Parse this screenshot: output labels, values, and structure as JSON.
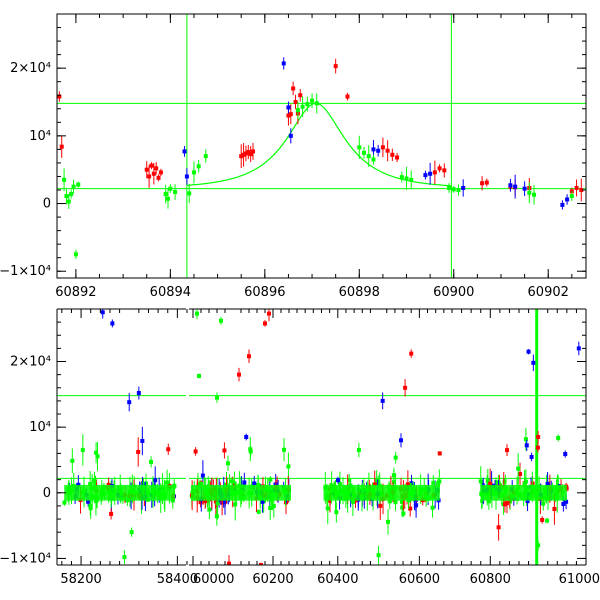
{
  "chart_data": [
    {
      "type": "scatter",
      "panel": "top",
      "xlim": [
        60891.6,
        60902.8
      ],
      "ylim": [
        -11000,
        28000
      ],
      "x_ticks": [
        "60892",
        "60894",
        "60896",
        "60898",
        "60900",
        "60902"
      ],
      "x_tick_values": [
        60892,
        60894,
        60896,
        60898,
        60900,
        60902
      ],
      "y_ticks": [
        "−1×10⁴",
        "0",
        "10⁴",
        "2×10⁴"
      ],
      "y_tick_values": [
        -10000,
        0,
        10000,
        20000
      ],
      "hlines": [
        2200,
        14800
      ],
      "vlines": [
        60894.35,
        60899.95
      ],
      "model_curve": {
        "t0": 60897.08,
        "u0": 0.52,
        "tE": 1.25,
        "base": 2200,
        "peak": 14800
      },
      "colors": {
        "red": "#ff0000",
        "blue": "#0000ff",
        "green": "#00ff00"
      },
      "series": [
        {
          "color": "red",
          "points": [
            [
              60891.65,
              15800
            ],
            [
              60891.7,
              8400
            ],
            [
              60893.5,
              5000
            ],
            [
              60893.55,
              4000
            ],
            [
              60893.6,
              5600
            ],
            [
              60893.65,
              4400
            ],
            [
              60893.7,
              5200
            ],
            [
              60893.75,
              3800
            ],
            [
              60893.8,
              4600
            ],
            [
              60895.5,
              7000
            ],
            [
              60895.55,
              7200
            ],
            [
              60895.6,
              7400
            ],
            [
              60895.65,
              7600
            ],
            [
              60895.7,
              7300
            ],
            [
              60895.75,
              7700
            ],
            [
              60896.5,
              13000
            ],
            [
              60896.55,
              13200
            ],
            [
              60896.6,
              17000
            ],
            [
              60896.65,
              15000
            ],
            [
              60896.7,
              13300
            ],
            [
              60896.75,
              16000
            ],
            [
              60897.5,
              20300
            ],
            [
              60897.75,
              15800
            ],
            [
              60898.5,
              8300
            ],
            [
              60898.6,
              7800
            ],
            [
              60898.7,
              7200
            ],
            [
              60898.8,
              6800
            ],
            [
              60899.6,
              4600
            ],
            [
              60899.7,
              5200
            ],
            [
              60899.8,
              4900
            ],
            [
              60900.6,
              3000
            ],
            [
              60900.7,
              3100
            ],
            [
              60901.2,
              2500
            ],
            [
              60901.3,
              2400
            ],
            [
              60901.6,
              2300
            ],
            [
              60902.5,
              1800
            ],
            [
              60902.6,
              2300
            ],
            [
              60902.7,
              2000
            ]
          ]
        },
        {
          "color": "blue",
          "points": [
            [
              60894.3,
              7700
            ],
            [
              60894.35,
              4000
            ],
            [
              60896.4,
              20700
            ],
            [
              60896.5,
              14200
            ],
            [
              60896.55,
              10000
            ],
            [
              60898.3,
              8000
            ],
            [
              60898.4,
              7800
            ],
            [
              60899.4,
              4200
            ],
            [
              60899.5,
              4400
            ],
            [
              60900.2,
              2300
            ],
            [
              60901.2,
              2700
            ],
            [
              60901.3,
              2500
            ],
            [
              60901.5,
              2200
            ],
            [
              60902.3,
              -200
            ],
            [
              60902.4,
              600
            ]
          ]
        },
        {
          "color": "green",
          "points": [
            [
              60891.75,
              3500
            ],
            [
              60891.8,
              1100
            ],
            [
              60891.85,
              300
            ],
            [
              60891.9,
              1400
            ],
            [
              60891.95,
              2500
            ],
            [
              60892.0,
              -7500
            ],
            [
              60892.05,
              2800
            ],
            [
              60893.9,
              1400
            ],
            [
              60893.95,
              700
            ],
            [
              60894.0,
              2200
            ],
            [
              60894.1,
              1700
            ],
            [
              60894.4,
              1500
            ],
            [
              60894.5,
              4600
            ],
            [
              60894.6,
              5500
            ],
            [
              60894.75,
              7000
            ],
            [
              60896.7,
              13800
            ],
            [
              60896.8,
              14300
            ],
            [
              60896.9,
              14700
            ],
            [
              60897.0,
              15200
            ],
            [
              60897.1,
              14800
            ],
            [
              60898.0,
              8300
            ],
            [
              60898.1,
              7500
            ],
            [
              60898.2,
              7000
            ],
            [
              60898.3,
              6500
            ],
            [
              60898.9,
              3900
            ],
            [
              60899.0,
              3700
            ],
            [
              60899.1,
              3500
            ],
            [
              60899.9,
              2300
            ],
            [
              60900.0,
              2100
            ],
            [
              60900.1,
              2000
            ],
            [
              60901.6,
              1600
            ],
            [
              60901.7,
              1300
            ],
            [
              60902.5,
              1100
            ]
          ]
        }
      ]
    },
    {
      "type": "scatter",
      "panel": "bottom",
      "segments": [
        {
          "xlim": [
            58150,
            58420
          ],
          "x_ticks": [
            "58200",
            "58400"
          ],
          "x_tick_values": [
            58200,
            58400
          ]
        },
        {
          "xlim": [
            59985,
            60260
          ],
          "x_ticks": [
            "60000",
            "60200"
          ],
          "x_tick_values": [
            60000,
            60200
          ]
        },
        {
          "xlim": [
            60300,
            60680
          ],
          "x_ticks": [
            "60400",
            "60600"
          ],
          "x_tick_values": [
            60400,
            60600
          ]
        },
        {
          "xlim": [
            60720,
            61000
          ],
          "x_ticks": [
            "60800",
            "61000"
          ],
          "x_tick_values": [
            60800,
            61000
          ]
        }
      ],
      "ylim": [
        -11000,
        28000
      ],
      "y_ticks": [
        "−1×10⁴",
        "0",
        "10⁴",
        "2×10⁴"
      ],
      "y_tick_values": [
        -10000,
        0,
        10000,
        20000
      ],
      "hlines": [
        2200,
        14800
      ],
      "vlines": [
        60897
      ],
      "clusters": [
        {
          "xrange": [
            58165,
            58395
          ],
          "spread": 2500,
          "count": 110
        },
        {
          "xrange": [
            59995,
            60245
          ],
          "spread": 3000,
          "count": 130
        },
        {
          "xrange": [
            60365,
            60650
          ],
          "spread": 3000,
          "count": 130
        },
        {
          "xrange": [
            60780,
            60960
          ],
          "spread": 3000,
          "count": 110
        }
      ],
      "outliers": [
        {
          "color": "blue",
          "points": [
            [
              58245,
              27500
            ],
            [
              58265,
              25800
            ],
            [
              58320,
              15200
            ],
            [
              58300,
              13800
            ],
            [
              60510,
              14000
            ],
            [
              60880,
              21500
            ],
            [
              60890,
              19800
            ],
            [
              60985,
              22000
            ],
            [
              60290,
              8500
            ],
            [
              60555,
              8000
            ]
          ]
        },
        {
          "color": "red",
          "points": [
            [
              60190,
              27300
            ],
            [
              60180,
              25800
            ],
            [
              60140,
              20800
            ],
            [
              60115,
              18000
            ],
            [
              60580,
              21200
            ],
            [
              60565,
              16000
            ],
            [
              60090,
              -10800
            ],
            [
              60170,
              -11000
            ],
            [
              60900,
              8500
            ],
            [
              60835,
              6500
            ],
            [
              60650,
              6000
            ]
          ]
        },
        {
          "color": "green",
          "points": [
            [
              60010,
              27300
            ],
            [
              60015,
              17800
            ],
            [
              60070,
              26200
            ],
            [
              60060,
              14500
            ],
            [
              58290,
              -9800
            ],
            [
              58305,
              -6000
            ],
            [
              60500,
              -9500
            ],
            [
              60900,
              -8000
            ]
          ]
        }
      ]
    }
  ]
}
